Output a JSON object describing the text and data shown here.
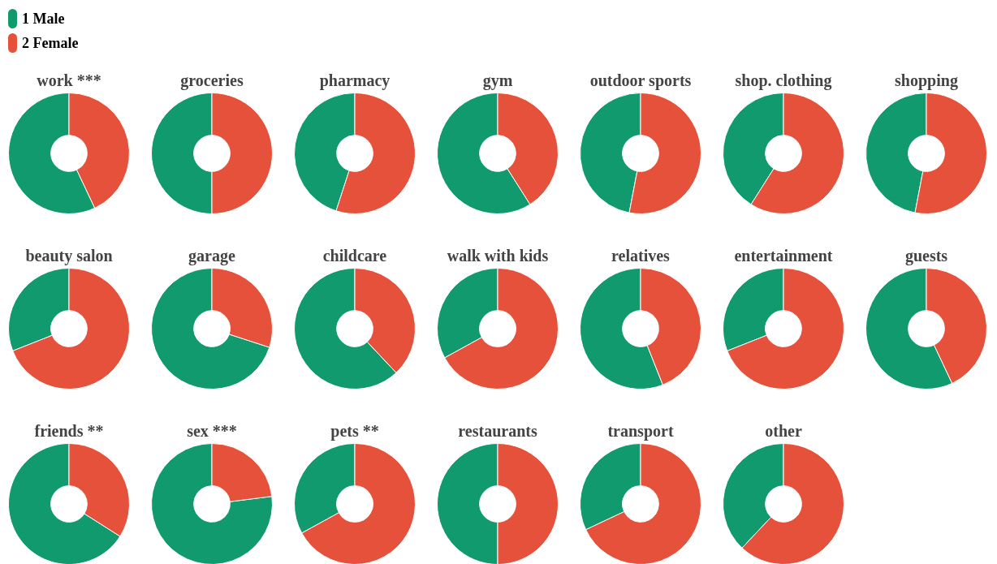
{
  "chart_data": [
    {
      "type": "donut",
      "title": "work ***",
      "categories": [
        "1 Male",
        "2 Female"
      ],
      "values": [
        57,
        43
      ],
      "colors": [
        "#119a6e",
        "#e5513b"
      ],
      "legend": "top left"
    },
    {
      "type": "donut",
      "title": "groceries",
      "categories": [
        null,
        null
      ],
      "values": [
        50,
        50
      ],
      "colors": [
        "#119a6e",
        "#e5513b"
      ]
    },
    {
      "type": "donut",
      "title": "pharmacy",
      "categories": [
        null,
        null
      ],
      "values": [
        45,
        55
      ],
      "colors": [
        "#119a6e",
        "#e5513b"
      ]
    },
    {
      "type": "donut",
      "title": "gym",
      "categories": [
        null,
        null
      ],
      "values": [
        59,
        41
      ],
      "colors": [
        "#119a6e",
        "#e5513b"
      ]
    },
    {
      "type": "donut",
      "title": "outdoor sports",
      "categories": [
        null,
        null
      ],
      "values": [
        47,
        53
      ],
      "colors": [
        "#119a6e",
        "#e5513b"
      ]
    },
    {
      "type": "donut",
      "title": "shop. clothing",
      "categories": [
        null,
        null
      ],
      "values": [
        41,
        59
      ],
      "colors": [
        "#119a6e",
        "#e5513b"
      ]
    },
    {
      "type": "donut",
      "title": "shopping",
      "categories": [
        null,
        null
      ],
      "values": [
        47,
        53
      ],
      "colors": [
        "#119a6e",
        "#e5513b"
      ]
    },
    {
      "type": "donut",
      "title": "beauty salon",
      "categories": [
        null,
        null
      ],
      "values": [
        31,
        69
      ],
      "colors": [
        "#119a6e",
        "#e5513b"
      ]
    },
    {
      "type": "donut",
      "title": "garage",
      "categories": [
        null,
        null
      ],
      "values": [
        70,
        30
      ],
      "colors": [
        "#119a6e",
        "#e5513b"
      ]
    },
    {
      "type": "donut",
      "title": "childcare",
      "categories": [
        null,
        null
      ],
      "values": [
        62,
        38
      ],
      "colors": [
        "#119a6e",
        "#e5513b"
      ]
    },
    {
      "type": "donut",
      "title": "walk with kids",
      "categories": [
        null,
        null
      ],
      "values": [
        33,
        67
      ],
      "colors": [
        "#119a6e",
        "#e5513b"
      ]
    },
    {
      "type": "donut",
      "title": "relatives",
      "categories": [
        null,
        null
      ],
      "values": [
        56,
        44
      ],
      "colors": [
        "#119a6e",
        "#e5513b"
      ]
    },
    {
      "type": "donut",
      "title": "entertainment",
      "categories": [
        null,
        null
      ],
      "values": [
        31,
        69
      ],
      "colors": [
        "#119a6e",
        "#e5513b"
      ]
    },
    {
      "type": "donut",
      "title": "guests",
      "categories": [
        null,
        null
      ],
      "values": [
        57,
        43
      ],
      "colors": [
        "#119a6e",
        "#e5513b"
      ]
    },
    {
      "type": "donut",
      "title": "friends **",
      "categories": [
        null,
        null
      ],
      "values": [
        66,
        34
      ],
      "colors": [
        "#119a6e",
        "#e5513b"
      ]
    },
    {
      "type": "donut",
      "title": "sex ***",
      "categories": [
        null,
        null
      ],
      "values": [
        77,
        23
      ],
      "colors": [
        "#119a6e",
        "#e5513b"
      ]
    },
    {
      "type": "donut",
      "title": "pets **",
      "categories": [
        null,
        null
      ],
      "values": [
        33,
        67
      ],
      "colors": [
        "#119a6e",
        "#e5513b"
      ]
    },
    {
      "type": "donut",
      "title": "restaurants",
      "categories": [
        null,
        null
      ],
      "values": [
        50,
        50
      ],
      "colors": [
        "#119a6e",
        "#e5513b"
      ]
    },
    {
      "type": "donut",
      "title": "transport",
      "categories": [
        null,
        null
      ],
      "values": [
        32,
        68
      ],
      "colors": [
        "#119a6e",
        "#e5513b"
      ]
    },
    {
      "type": "donut",
      "title": "other",
      "categories": [
        null,
        null
      ],
      "values": [
        38,
        62
      ],
      "colors": [
        "#119a6e",
        "#e5513b"
      ]
    }
  ]
}
